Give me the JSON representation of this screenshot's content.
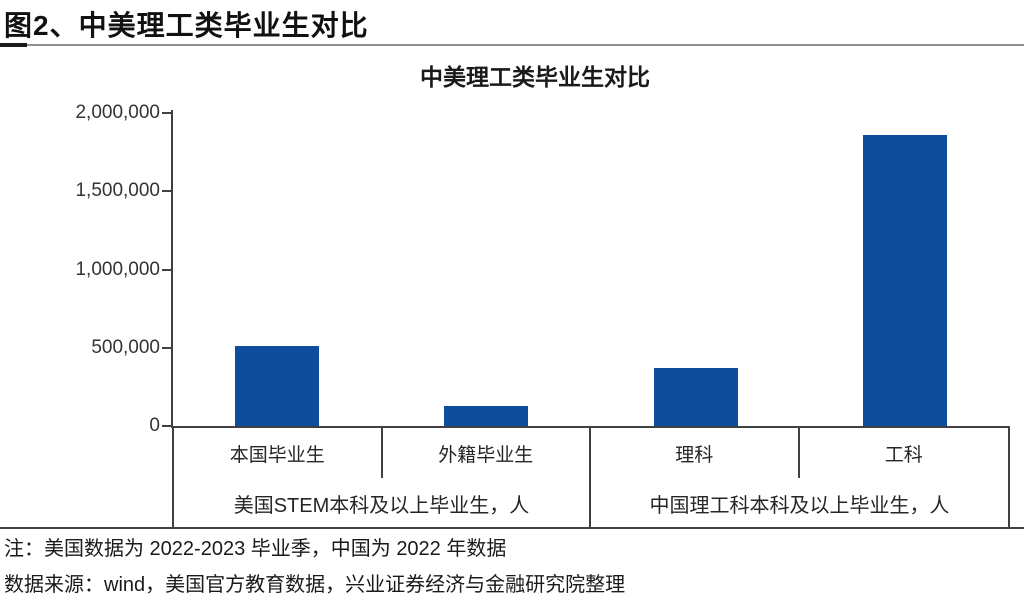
{
  "figure_header": {
    "label": "图2、中美理工类毕业生对比"
  },
  "chart_data": {
    "type": "bar",
    "title": "中美理工类毕业生对比",
    "categories": [
      "本国毕业生",
      "外籍毕业生",
      "理科",
      "工科"
    ],
    "values": [
      510000,
      130000,
      370000,
      1860000
    ],
    "groups": [
      {
        "label": "美国STEM本科及以上毕业生，人",
        "categories": [
          "本国毕业生",
          "外籍毕业生"
        ],
        "values": [
          510000,
          130000
        ]
      },
      {
        "label": "中国理工科本科及以上毕业生，人",
        "categories": [
          "理科",
          "工科"
        ],
        "values": [
          370000,
          1860000
        ]
      }
    ],
    "xlabel": "",
    "ylabel": "",
    "ylim": [
      0,
      2000000
    ],
    "ytick_interval": 500000,
    "ytick_labels": [
      "0",
      "500,000",
      "1,000,000",
      "1,500,000",
      "2,000,000"
    ],
    "grid": false,
    "legend": false,
    "bar_color": "#0d4d9c",
    "axis_color": "#404040"
  },
  "footer": {
    "note": "注：美国数据为 2022-2023 毕业季，中国为 2022 年数据",
    "source": "数据来源：wind，美国官方教育数据，兴业证券经济与金融研究院整理"
  }
}
